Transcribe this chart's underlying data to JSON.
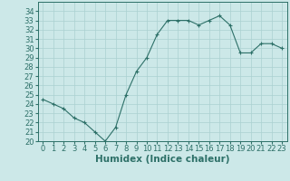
{
  "x": [
    0,
    1,
    2,
    3,
    4,
    5,
    6,
    7,
    8,
    9,
    10,
    11,
    12,
    13,
    14,
    15,
    16,
    17,
    18,
    19,
    20,
    21,
    22,
    23
  ],
  "y": [
    24.5,
    24.0,
    23.5,
    22.5,
    22.0,
    21.0,
    20.0,
    21.5,
    25.0,
    27.5,
    29.0,
    31.5,
    33.0,
    33.0,
    33.0,
    32.5,
    33.0,
    33.5,
    32.5,
    29.5,
    29.5,
    30.5,
    30.5,
    30.0
  ],
  "line_color": "#2d7068",
  "marker": "+",
  "bg_color": "#cce8e8",
  "grid_color": "#aad0d0",
  "xlabel": "Humidex (Indice chaleur)",
  "xlim": [
    -0.5,
    23.5
  ],
  "ylim": [
    20,
    35
  ],
  "yticks": [
    20,
    21,
    22,
    23,
    24,
    25,
    26,
    27,
    28,
    29,
    30,
    31,
    32,
    33,
    34
  ],
  "xticks": [
    0,
    1,
    2,
    3,
    4,
    5,
    6,
    7,
    8,
    9,
    10,
    11,
    12,
    13,
    14,
    15,
    16,
    17,
    18,
    19,
    20,
    21,
    22,
    23
  ],
  "label_fontsize": 7.5,
  "tick_fontsize": 6.0
}
